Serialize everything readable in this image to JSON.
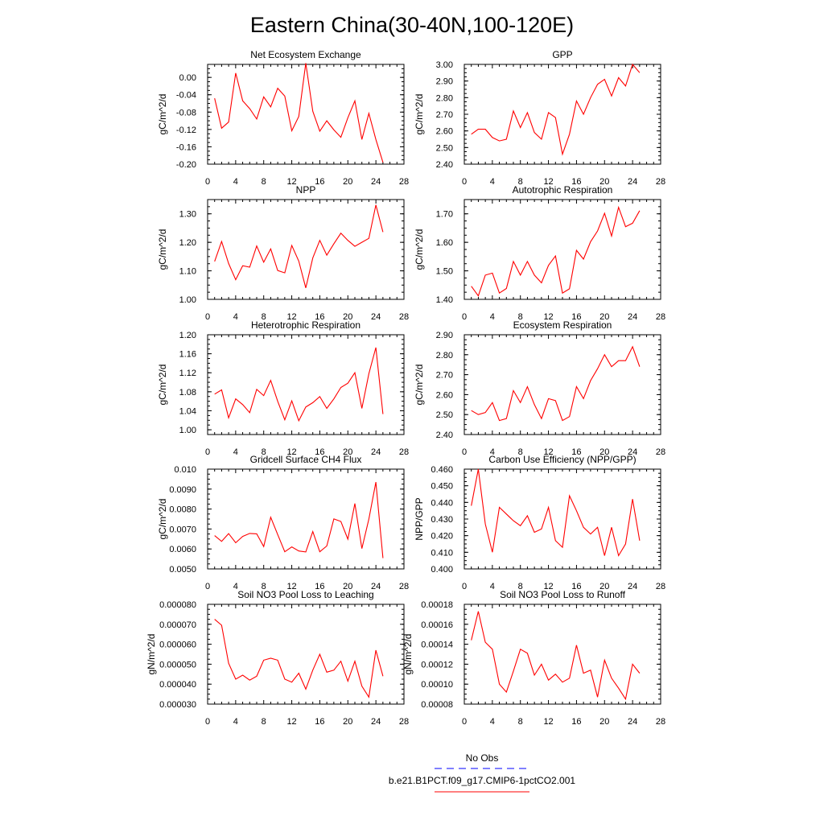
{
  "figure": {
    "title": "Eastern China(30-40N,100-120E)"
  },
  "legend": {
    "entries": [
      {
        "label": "No Obs",
        "color": "#0000ff",
        "dash": true
      },
      {
        "label": "b.e21.B1PCT.f09_g17.CMIP6-1pctCO2.001",
        "color": "#ff0000",
        "dash": false
      }
    ]
  },
  "chart_data": [
    {
      "type": "line",
      "title": "Net Ecosystem Exchange",
      "xlabel": "",
      "ylabel": "gC/m^2/d",
      "xlim": [
        0,
        28
      ],
      "ylim": [
        -0.2,
        0.03
      ],
      "xticks": [
        "0",
        "4",
        "8",
        "12",
        "16",
        "20",
        "24",
        "28"
      ],
      "yticks": [
        "0.00",
        "-0.04",
        "-0.08",
        "-0.12",
        "-0.16",
        "-0.20"
      ],
      "ytick_values": [
        0.0,
        -0.04,
        -0.08,
        -0.12,
        -0.16,
        -0.2
      ],
      "x": [
        1,
        2,
        3,
        4,
        5,
        6,
        7,
        8,
        9,
        10,
        11,
        12,
        13,
        14,
        15,
        16,
        17,
        18,
        19,
        20,
        21,
        22,
        23,
        24,
        25
      ],
      "series": [
        {
          "color": "#ff0000",
          "values": [
            -0.048,
            -0.117,
            -0.103,
            0.01,
            -0.054,
            -0.072,
            -0.096,
            -0.045,
            -0.068,
            -0.025,
            -0.043,
            -0.123,
            -0.09,
            0.033,
            -0.078,
            -0.124,
            -0.1,
            -0.121,
            -0.138,
            -0.093,
            -0.054,
            -0.143,
            -0.083,
            -0.143,
            -0.196
          ]
        }
      ]
    },
    {
      "type": "line",
      "title": "GPP",
      "xlabel": "",
      "ylabel": "gC/m^2/d",
      "xlim": [
        0,
        28
      ],
      "ylim": [
        2.4,
        3.0
      ],
      "xticks": [
        "0",
        "4",
        "8",
        "12",
        "16",
        "20",
        "24",
        "28"
      ],
      "yticks": [
        "3.00",
        "2.90",
        "2.80",
        "2.70",
        "2.60",
        "2.50",
        "2.40"
      ],
      "ytick_values": [
        3.0,
        2.9,
        2.8,
        2.7,
        2.6,
        2.5,
        2.4
      ],
      "x": [
        1,
        2,
        3,
        4,
        5,
        6,
        7,
        8,
        9,
        10,
        11,
        12,
        13,
        14,
        15,
        16,
        17,
        18,
        19,
        20,
        21,
        22,
        23,
        24,
        25
      ],
      "series": [
        {
          "color": "#ff0000",
          "values": [
            2.58,
            2.61,
            2.61,
            2.56,
            2.54,
            2.55,
            2.72,
            2.62,
            2.71,
            2.59,
            2.55,
            2.71,
            2.68,
            2.46,
            2.58,
            2.78,
            2.7,
            2.8,
            2.88,
            2.91,
            2.81,
            2.92,
            2.87,
            3.0,
            2.95
          ]
        }
      ]
    },
    {
      "type": "line",
      "title": "NPP",
      "xlabel": "",
      "ylabel": "gC/m^2/d",
      "xlim": [
        0,
        28
      ],
      "ylim": [
        1.0,
        1.35
      ],
      "xticks": [
        "0",
        "4",
        "8",
        "12",
        "16",
        "20",
        "24",
        "28"
      ],
      "yticks": [
        "1.30",
        "1.20",
        "1.10",
        "1.00"
      ],
      "ytick_values": [
        1.3,
        1.2,
        1.1,
        1.0
      ],
      "x": [
        1,
        2,
        3,
        4,
        5,
        6,
        7,
        8,
        9,
        10,
        11,
        12,
        13,
        14,
        15,
        16,
        17,
        18,
        19,
        20,
        21,
        22,
        23,
        24,
        25
      ],
      "series": [
        {
          "color": "#ff0000",
          "values": [
            1.133,
            1.203,
            1.126,
            1.069,
            1.118,
            1.113,
            1.187,
            1.13,
            1.177,
            1.101,
            1.093,
            1.189,
            1.134,
            1.04,
            1.145,
            1.207,
            1.155,
            1.195,
            1.232,
            1.207,
            1.186,
            1.2,
            1.214,
            1.331,
            1.236
          ]
        }
      ]
    },
    {
      "type": "line",
      "title": "Autotrophic Respiration",
      "xlabel": "",
      "ylabel": "gC/m^2/d",
      "xlim": [
        0,
        28
      ],
      "ylim": [
        1.4,
        1.75
      ],
      "xticks": [
        "0",
        "4",
        "8",
        "12",
        "16",
        "20",
        "24",
        "28"
      ],
      "yticks": [
        "1.70",
        "1.60",
        "1.50",
        "1.40"
      ],
      "ytick_values": [
        1.7,
        1.6,
        1.5,
        1.4
      ],
      "x": [
        1,
        2,
        3,
        4,
        5,
        6,
        7,
        8,
        9,
        10,
        11,
        12,
        13,
        14,
        15,
        16,
        17,
        18,
        19,
        20,
        21,
        22,
        23,
        24,
        25
      ],
      "series": [
        {
          "color": "#ff0000",
          "values": [
            1.446,
            1.412,
            1.485,
            1.492,
            1.422,
            1.438,
            1.533,
            1.485,
            1.533,
            1.485,
            1.458,
            1.519,
            1.552,
            1.422,
            1.437,
            1.572,
            1.541,
            1.602,
            1.64,
            1.702,
            1.622,
            1.723,
            1.655,
            1.667,
            1.711
          ]
        }
      ]
    },
    {
      "type": "line",
      "title": "Heterotrophic Respiration",
      "xlabel": "",
      "ylabel": "gC/m^2/d",
      "xlim": [
        0,
        28
      ],
      "ylim": [
        0.99,
        1.2
      ],
      "xticks": [
        "0",
        "4",
        "8",
        "12",
        "16",
        "20",
        "24",
        "28"
      ],
      "yticks": [
        "1.20",
        "1.16",
        "1.12",
        "1.08",
        "1.04",
        "1.00"
      ],
      "ytick_values": [
        1.2,
        1.16,
        1.12,
        1.08,
        1.04,
        1.0
      ],
      "x": [
        1,
        2,
        3,
        4,
        5,
        6,
        7,
        8,
        9,
        10,
        11,
        12,
        13,
        14,
        15,
        16,
        17,
        18,
        19,
        20,
        21,
        22,
        23,
        24,
        25
      ],
      "series": [
        {
          "color": "#ff0000",
          "values": [
            1.075,
            1.084,
            1.025,
            1.065,
            1.053,
            1.036,
            1.085,
            1.072,
            1.104,
            1.06,
            1.021,
            1.061,
            1.019,
            1.048,
            1.057,
            1.07,
            1.045,
            1.065,
            1.089,
            1.098,
            1.12,
            1.045,
            1.118,
            1.173,
            1.033
          ]
        }
      ]
    },
    {
      "type": "line",
      "title": "Ecosystem Respiration",
      "xlabel": "",
      "ylabel": "gC/m^2/d",
      "xlim": [
        0,
        28
      ],
      "ylim": [
        2.4,
        2.9
      ],
      "xticks": [
        "0",
        "4",
        "8",
        "12",
        "16",
        "20",
        "24",
        "28"
      ],
      "yticks": [
        "2.90",
        "2.80",
        "2.70",
        "2.60",
        "2.50",
        "2.40"
      ],
      "ytick_values": [
        2.9,
        2.8,
        2.7,
        2.6,
        2.5,
        2.4
      ],
      "x": [
        1,
        2,
        3,
        4,
        5,
        6,
        7,
        8,
        9,
        10,
        11,
        12,
        13,
        14,
        15,
        16,
        17,
        18,
        19,
        20,
        21,
        22,
        23,
        24,
        25
      ],
      "series": [
        {
          "color": "#ff0000",
          "values": [
            2.52,
            2.5,
            2.51,
            2.56,
            2.47,
            2.48,
            2.62,
            2.56,
            2.64,
            2.55,
            2.48,
            2.58,
            2.57,
            2.47,
            2.49,
            2.64,
            2.58,
            2.67,
            2.73,
            2.8,
            2.74,
            2.77,
            2.77,
            2.84,
            2.74
          ]
        }
      ]
    },
    {
      "type": "line",
      "title": "Gridcell Surface CH4 Flux",
      "xlabel": "",
      "ylabel": "gC/m^2/d",
      "xlim": [
        0,
        28
      ],
      "ylim": [
        0.005,
        0.01
      ],
      "xticks": [
        "0",
        "4",
        "8",
        "12",
        "16",
        "20",
        "24",
        "28"
      ],
      "yticks": [
        "0.010",
        "0.0090",
        "0.0080",
        "0.0070",
        "0.0060",
        "0.0050"
      ],
      "ytick_values": [
        0.01,
        0.009,
        0.008,
        0.007,
        0.006,
        0.005
      ],
      "x": [
        1,
        2,
        3,
        4,
        5,
        6,
        7,
        8,
        9,
        10,
        11,
        12,
        13,
        14,
        15,
        16,
        17,
        18,
        19,
        20,
        21,
        22,
        23,
        24,
        25
      ],
      "series": [
        {
          "color": "#ff0000",
          "values": [
            0.00667,
            0.00638,
            0.00677,
            0.00631,
            0.00663,
            0.00678,
            0.00676,
            0.00612,
            0.00759,
            0.00672,
            0.00586,
            0.0061,
            0.0059,
            0.00585,
            0.00687,
            0.00586,
            0.00615,
            0.00751,
            0.00738,
            0.00649,
            0.00828,
            0.00602,
            0.0075,
            0.00935,
            0.00554
          ]
        }
      ]
    },
    {
      "type": "line",
      "title": "Carbon Use Efficiency (NPP/GPP)",
      "xlabel": "",
      "ylabel": "NPP/GPP",
      "xlim": [
        0,
        28
      ],
      "ylim": [
        0.4,
        0.46
      ],
      "xticks": [
        "0",
        "4",
        "8",
        "12",
        "16",
        "20",
        "24",
        "28"
      ],
      "yticks": [
        "0.460",
        "0.450",
        "0.440",
        "0.430",
        "0.420",
        "0.410",
        "0.400"
      ],
      "ytick_values": [
        0.46,
        0.45,
        0.44,
        0.43,
        0.42,
        0.41,
        0.4
      ],
      "x": [
        1,
        2,
        3,
        4,
        5,
        6,
        7,
        8,
        9,
        10,
        11,
        12,
        13,
        14,
        15,
        16,
        17,
        18,
        19,
        20,
        21,
        22,
        23,
        24,
        25
      ],
      "series": [
        {
          "color": "#ff0000",
          "values": [
            0.438,
            0.46,
            0.427,
            0.41,
            0.437,
            0.433,
            0.429,
            0.426,
            0.432,
            0.422,
            0.424,
            0.437,
            0.417,
            0.413,
            0.444,
            0.435,
            0.425,
            0.421,
            0.425,
            0.408,
            0.425,
            0.408,
            0.415,
            0.442,
            0.417
          ]
        }
      ]
    },
    {
      "type": "line",
      "title": "Soil NO3 Pool Loss to Leaching",
      "xlabel": "",
      "ylabel": "gN/m^2/d",
      "xlim": [
        0,
        28
      ],
      "ylim": [
        3e-05,
        8e-05
      ],
      "xticks": [
        "0",
        "4",
        "8",
        "12",
        "16",
        "20",
        "24",
        "28"
      ],
      "yticks": [
        "0.000080",
        "0.000070",
        "0.000060",
        "0.000050",
        "0.000040",
        "0.000030"
      ],
      "ytick_values": [
        8e-05,
        7e-05,
        6e-05,
        5e-05,
        4e-05,
        3e-05
      ],
      "x": [
        1,
        2,
        3,
        4,
        5,
        6,
        7,
        8,
        9,
        10,
        11,
        12,
        13,
        14,
        15,
        16,
        17,
        18,
        19,
        20,
        21,
        22,
        23,
        24,
        25
      ],
      "series": [
        {
          "color": "#ff0000",
          "values": [
            7.25e-05,
            6.95e-05,
            5.05e-05,
            4.25e-05,
            4.45e-05,
            4.2e-05,
            4.4e-05,
            5.2e-05,
            5.3e-05,
            5.2e-05,
            4.25e-05,
            4.1e-05,
            4.55e-05,
            3.75e-05,
            4.7e-05,
            5.5e-05,
            4.6e-05,
            4.7e-05,
            5.15e-05,
            4.15e-05,
            5.15e-05,
            3.9e-05,
            3.35e-05,
            5.7e-05,
            4.4e-05
          ]
        }
      ]
    },
    {
      "type": "line",
      "title": "Soil NO3 Pool Loss to Runoff",
      "xlabel": "",
      "ylabel": "gN/m^2/d",
      "xlim": [
        0,
        28
      ],
      "ylim": [
        8e-05,
        0.00018
      ],
      "xticks": [
        "0",
        "4",
        "8",
        "12",
        "16",
        "20",
        "24",
        "28"
      ],
      "yticks": [
        "0.00018",
        "0.00016",
        "0.00014",
        "0.00012",
        "0.00010",
        "0.00008"
      ],
      "ytick_values": [
        0.00018,
        0.00016,
        0.00014,
        0.00012,
        0.0001,
        8e-05
      ],
      "x": [
        1,
        2,
        3,
        4,
        5,
        6,
        7,
        8,
        9,
        10,
        11,
        12,
        13,
        14,
        15,
        16,
        17,
        18,
        19,
        20,
        21,
        22,
        23,
        24,
        25
      ],
      "series": [
        {
          "color": "#ff0000",
          "values": [
            0.000144,
            0.000173,
            0.000142,
            0.000135,
            0.0001,
            9.2e-05,
            0.000113,
            0.000135,
            0.000131,
            0.000109,
            0.00012,
            0.000104,
            0.00011,
            0.000102,
            0.000106,
            0.000139,
            0.000111,
            0.000114,
            8.7e-05,
            0.000124,
            0.000106,
            9.6e-05,
            8.5e-05,
            0.00012,
            0.000111
          ]
        }
      ]
    }
  ]
}
